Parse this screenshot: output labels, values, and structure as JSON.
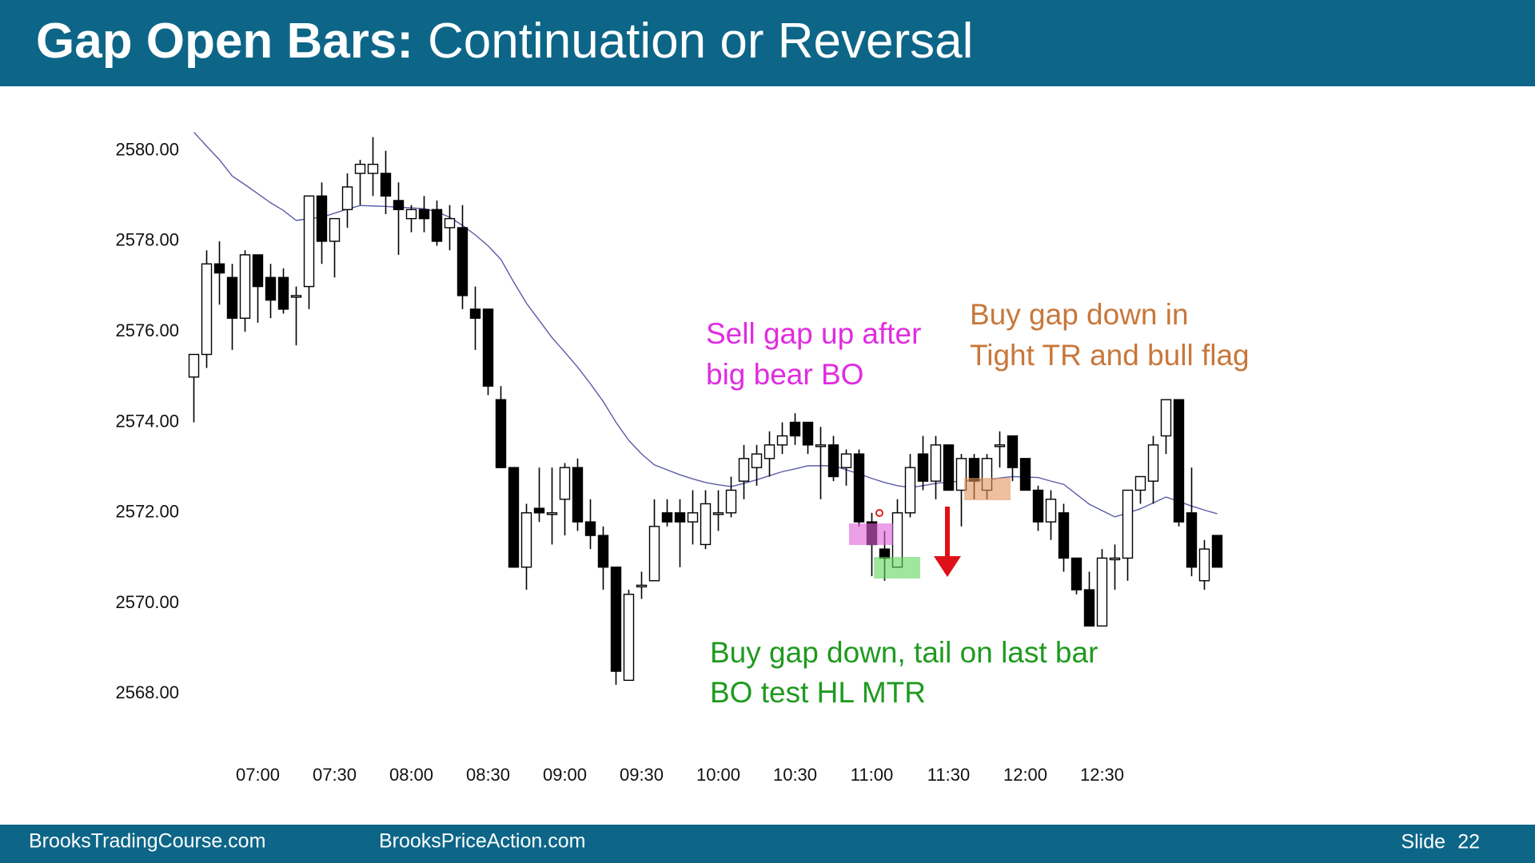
{
  "header": {
    "title_bold": "Gap Open Bars:",
    "title_rest": "Continuation or Reversal"
  },
  "chart_data": {
    "type": "candlestick",
    "categories": [
      null,
      null,
      null,
      null,
      null,
      "07:00",
      null,
      null,
      null,
      null,
      null,
      "07:30",
      null,
      null,
      null,
      null,
      null,
      "08:00",
      null,
      null,
      null,
      null,
      null,
      "08:30",
      null,
      null,
      null,
      null,
      null,
      "09:00",
      null,
      null,
      null,
      null,
      null,
      "09:30",
      null,
      null,
      null,
      null,
      null,
      "10:00",
      null,
      null,
      null,
      null,
      null,
      "10:30",
      null,
      null,
      null,
      null,
      null,
      "11:00",
      null,
      null,
      null,
      null,
      null,
      "11:30",
      null,
      null,
      null,
      null,
      null,
      "12:00",
      null,
      null,
      null,
      null,
      null,
      "12:30",
      null,
      null,
      null,
      null,
      null,
      null,
      null,
      null,
      null
    ],
    "open": [
      2575.0,
      2575.5,
      2577.5,
      2577.2,
      2576.3,
      2577.7,
      2577.2,
      2577.2,
      2576.8,
      2577.0,
      2579.0,
      2578.0,
      2578.7,
      2579.5,
      2579.5,
      2579.5,
      2578.9,
      2578.5,
      2578.7,
      2578.7,
      2578.3,
      2578.3,
      2576.5,
      2576.5,
      2574.5,
      2573.0,
      2570.8,
      2572.1,
      2572.0,
      2572.3,
      2573.0,
      2571.8,
      2571.5,
      2570.8,
      2568.3,
      2570.4,
      2570.5,
      2572.0,
      2572.0,
      2571.8,
      2571.3,
      2572.0,
      2572.0,
      2572.7,
      2573.0,
      2573.2,
      2573.5,
      2574.0,
      2574.0,
      2573.5,
      2573.5,
      2573.0,
      2573.3,
      2571.8,
      2571.2,
      2570.8,
      2572.0,
      2573.3,
      2572.7,
      2573.5,
      2572.5,
      2573.2,
      2572.5,
      2573.5,
      2573.7,
      2573.2,
      2572.5,
      2571.8,
      2572.0,
      2571.0,
      2570.3,
      2569.5,
      2571.0,
      2571.0,
      2572.5,
      2572.7,
      2573.7,
      2574.5,
      2572.0,
      2570.5,
      2571.5
    ],
    "high": [
      2575.5,
      2577.8,
      2578.0,
      2577.5,
      2577.8,
      2577.7,
      2577.5,
      2577.4,
      2577.0,
      2579.0,
      2579.3,
      2578.5,
      2579.5,
      2579.8,
      2580.3,
      2580.0,
      2579.3,
      2578.8,
      2579.0,
      2578.9,
      2578.8,
      2578.8,
      2577.0,
      2576.5,
      2574.8,
      2573.0,
      2572.2,
      2573.0,
      2573.0,
      2573.1,
      2573.2,
      2572.3,
      2571.7,
      2570.8,
      2570.3,
      2570.7,
      2572.3,
      2572.3,
      2572.3,
      2572.5,
      2572.5,
      2572.5,
      2572.8,
      2573.5,
      2573.5,
      2573.8,
      2574.0,
      2574.2,
      2574.0,
      2573.9,
      2573.7,
      2573.4,
      2573.4,
      2572.0,
      2571.6,
      2572.3,
      2573.3,
      2573.7,
      2573.7,
      2573.5,
      2573.3,
      2573.3,
      2573.3,
      2573.8,
      2573.7,
      2573.2,
      2572.6,
      2572.5,
      2572.2,
      2571.0,
      2570.7,
      2571.2,
      2571.3,
      2572.5,
      2572.8,
      2573.7,
      2574.5,
      2574.5,
      2573.0,
      2571.4,
      2571.5
    ],
    "low": [
      2574.0,
      2575.2,
      2576.6,
      2575.6,
      2576.0,
      2576.2,
      2576.3,
      2576.4,
      2575.7,
      2576.5,
      2577.5,
      2577.2,
      2578.3,
      2578.8,
      2579.0,
      2578.6,
      2577.7,
      2578.2,
      2578.2,
      2577.9,
      2577.8,
      2576.5,
      2575.6,
      2574.6,
      2573.0,
      2570.8,
      2570.3,
      2571.8,
      2571.3,
      2571.5,
      2571.6,
      2571.2,
      2570.3,
      2568.2,
      2568.3,
      2570.1,
      2570.5,
      2571.7,
      2570.8,
      2571.3,
      2571.2,
      2571.6,
      2571.9,
      2572.3,
      2572.6,
      2572.8,
      2573.3,
      2573.5,
      2573.3,
      2572.3,
      2572.7,
      2572.6,
      2571.7,
      2570.6,
      2570.5,
      2570.8,
      2571.9,
      2572.5,
      2572.3,
      2572.5,
      2571.7,
      2572.3,
      2572.3,
      2573.0,
      2572.7,
      2572.5,
      2571.6,
      2571.4,
      2570.7,
      2570.2,
      2569.5,
      2569.5,
      2570.3,
      2570.5,
      2572.2,
      2572.2,
      2573.3,
      2571.7,
      2570.6,
      2570.3,
      2570.8
    ],
    "close": [
      2575.5,
      2577.5,
      2577.3,
      2576.3,
      2577.7,
      2577.0,
      2576.7,
      2576.5,
      2576.8,
      2579.0,
      2578.0,
      2578.5,
      2579.2,
      2579.7,
      2579.7,
      2579.0,
      2578.7,
      2578.7,
      2578.5,
      2578.0,
      2578.5,
      2576.8,
      2576.3,
      2574.8,
      2573.0,
      2570.8,
      2572.0,
      2572.0,
      2572.0,
      2573.0,
      2571.8,
      2571.5,
      2570.8,
      2568.5,
      2570.2,
      2570.4,
      2571.7,
      2571.8,
      2571.8,
      2572.0,
      2572.2,
      2572.0,
      2572.5,
      2573.2,
      2573.3,
      2573.5,
      2573.7,
      2573.7,
      2573.5,
      2573.5,
      2572.8,
      2573.3,
      2571.8,
      2571.3,
      2571.0,
      2572.0,
      2573.0,
      2572.7,
      2573.5,
      2572.5,
      2573.2,
      2572.7,
      2573.2,
      2573.5,
      2573.0,
      2572.5,
      2571.8,
      2572.3,
      2571.0,
      2570.3,
      2569.5,
      2571.0,
      2571.0,
      2572.5,
      2572.8,
      2573.5,
      2574.5,
      2571.8,
      2570.8,
      2571.2,
      2570.8
    ],
    "up_color": "#ffffff",
    "down_color": "#000000",
    "moving_average": {
      "color": "#5b5ba8",
      "values": [
        2580.41,
        2580.1,
        2579.8,
        2579.44,
        2579.25,
        2579.05,
        2578.85,
        2578.68,
        2578.46,
        2578.5,
        2578.53,
        2578.62,
        2578.71,
        2578.79,
        2578.78,
        2578.77,
        2578.75,
        2578.74,
        2578.72,
        2578.65,
        2578.53,
        2578.35,
        2578.14,
        2577.9,
        2577.6,
        2577.1,
        2576.63,
        2576.25,
        2575.87,
        2575.55,
        2575.22,
        2574.85,
        2574.46,
        2574.0,
        2573.6,
        2573.3,
        2573.06,
        2572.95,
        2572.84,
        2572.75,
        2572.67,
        2572.62,
        2572.58,
        2572.65,
        2572.73,
        2572.82,
        2572.91,
        2572.97,
        2573.04,
        2573.04,
        2573.04,
        2572.95,
        2572.86,
        2572.76,
        2572.67,
        2572.6,
        2572.56,
        2572.6,
        2572.65,
        2572.68,
        2572.7,
        2572.72,
        2572.73,
        2572.77,
        2572.8,
        2572.79,
        2572.78,
        2572.7,
        2572.63,
        2572.41,
        2572.19,
        2572.05,
        2571.91,
        2572.0,
        2572.09,
        2572.22,
        2572.35,
        2572.25,
        2572.15,
        2572.06,
        2571.98
      ]
    },
    "ylim": [
      2567,
      2581
    ],
    "yticks": [
      {
        "value": 2568,
        "label": "2568.00"
      },
      {
        "value": 2570,
        "label": "2570.00"
      },
      {
        "value": 2572,
        "label": "2572.00"
      },
      {
        "value": 2574,
        "label": "2574.00"
      },
      {
        "value": 2576,
        "label": "2576.00"
      },
      {
        "value": 2578,
        "label": "2578.00"
      },
      {
        "value": 2580,
        "label": "2580.00"
      }
    ],
    "grid": false,
    "annotations": [
      {
        "lines": [
          "Sell gap up after",
          "big bear BO"
        ],
        "color": "#e02ce0"
      },
      {
        "lines": [
          "Buy gap down in",
          "Tight TR and bull flag"
        ],
        "color": "#c8773a"
      },
      {
        "lines": [
          "Buy gap down, tail on last bar",
          "BO test HL MTR"
        ],
        "color": "#1f9a1f"
      }
    ]
  },
  "footer": {
    "left": "BrooksTradingCourse.com",
    "center": "BrooksPriceAction.com",
    "slide_label": "Slide",
    "slide_number": 22
  }
}
